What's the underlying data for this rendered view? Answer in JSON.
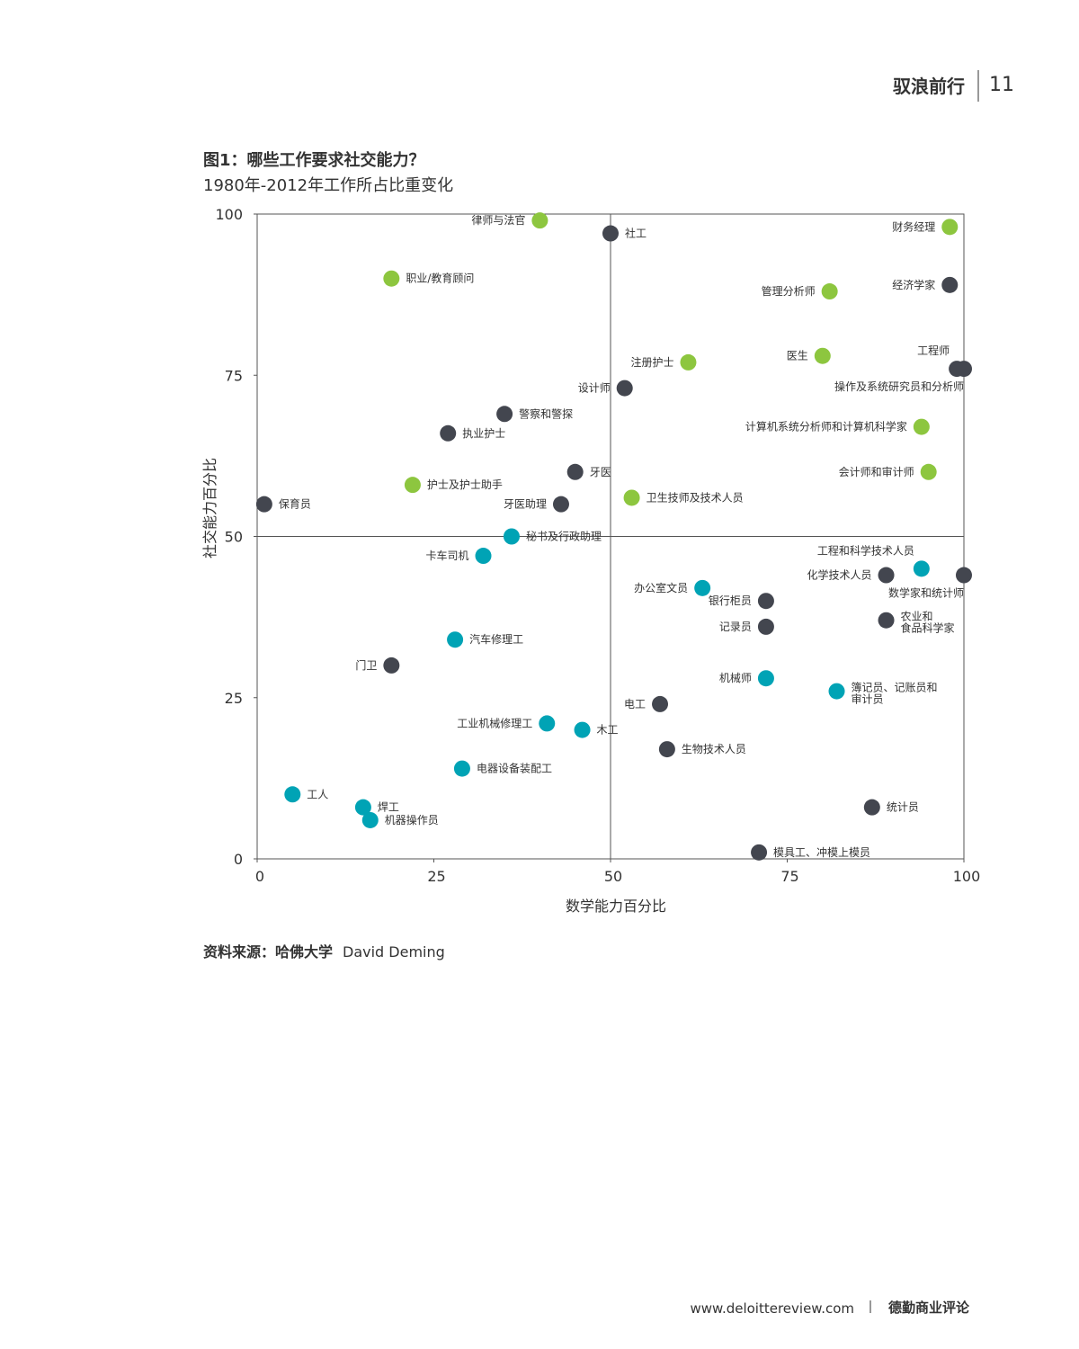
{
  "header": {
    "title": "驭浪前行",
    "page": "11"
  },
  "chart_data": {
    "type": "scatter",
    "title": "图1：哪些工作要求社交能力？",
    "subtitle": "1980年-2012年工作所占比重变化",
    "x_label": "数学能力百分比",
    "y_label": "社交能力百分比",
    "xlim": [
      0,
      100
    ],
    "ylim": [
      0,
      100
    ],
    "xticks": [
      0,
      25,
      50,
      75,
      100
    ],
    "yticks": [
      0,
      25,
      50,
      75,
      100
    ],
    "dividers": {
      "x": 50,
      "y": 50
    },
    "points": [
      {
        "label": "律师与法官",
        "x": 40,
        "y": 99,
        "color": "#8dc63f"
      },
      {
        "label": "社工",
        "x": 50,
        "y": 97,
        "color": "#43464f"
      },
      {
        "label": "财务经理",
        "x": 98,
        "y": 98,
        "color": "#8dc63f"
      },
      {
        "label": "职业/教育顾问",
        "x": 19,
        "y": 90,
        "color": "#8dc63f"
      },
      {
        "label": "管理分析师",
        "x": 81,
        "y": 88,
        "color": "#8dc63f"
      },
      {
        "label": "经济学家",
        "x": 98,
        "y": 89,
        "color": "#43464f"
      },
      {
        "label": "注册护士",
        "x": 61,
        "y": 77,
        "color": "#8dc63f"
      },
      {
        "label": "医生",
        "x": 80,
        "y": 78,
        "color": "#8dc63f"
      },
      {
        "label": "工程师",
        "x": 99,
        "y": 76,
        "color": "#43464f"
      },
      {
        "label": "操作及系统研究员和分析师",
        "x": 100,
        "y": 76,
        "color": "#43464f"
      },
      {
        "label": "设计师",
        "x": 52,
        "y": 73,
        "color": "#43464f"
      },
      {
        "label": "警察和警探",
        "x": 35,
        "y": 69,
        "color": "#43464f"
      },
      {
        "label": "执业护士",
        "x": 27,
        "y": 66,
        "color": "#43464f"
      },
      {
        "label": "计算机系统分析师和计算机科学家",
        "x": 94,
        "y": 67,
        "color": "#8dc63f"
      },
      {
        "label": "牙医",
        "x": 45,
        "y": 60,
        "color": "#43464f"
      },
      {
        "label": "会计师和审计师",
        "x": 95,
        "y": 60,
        "color": "#8dc63f"
      },
      {
        "label": "护士及护士助手",
        "x": 22,
        "y": 58,
        "color": "#8dc63f"
      },
      {
        "label": "保育员",
        "x": 1,
        "y": 55,
        "color": "#43464f"
      },
      {
        "label": "牙医助理",
        "x": 43,
        "y": 55,
        "color": "#43464f"
      },
      {
        "label": "卫生技师及技术人员",
        "x": 53,
        "y": 56,
        "color": "#8dc63f"
      },
      {
        "label": "秘书及行政助理",
        "x": 36,
        "y": 50,
        "color": "#00a3b5"
      },
      {
        "label": "卡车司机",
        "x": 32,
        "y": 47,
        "color": "#00a3b5"
      },
      {
        "label": "工程和科学技术人员",
        "x": 94,
        "y": 45,
        "color": "#00a3b5"
      },
      {
        "label": "化学技术人员",
        "x": 89,
        "y": 44,
        "color": "#43464f"
      },
      {
        "label": "数学家和统计师",
        "x": 100,
        "y": 44,
        "color": "#43464f"
      },
      {
        "label": "办公室文员",
        "x": 63,
        "y": 42,
        "color": "#00a3b5"
      },
      {
        "label": "银行柜员",
        "x": 72,
        "y": 40,
        "color": "#43464f"
      },
      {
        "label": "农业和\n食品科学家",
        "x": 89,
        "y": 37,
        "color": "#43464f"
      },
      {
        "label": "记录员",
        "x": 72,
        "y": 36,
        "color": "#43464f"
      },
      {
        "label": "汽车修理工",
        "x": 28,
        "y": 34,
        "color": "#00a3b5"
      },
      {
        "label": "门卫",
        "x": 19,
        "y": 30,
        "color": "#43464f"
      },
      {
        "label": "机械师",
        "x": 72,
        "y": 28,
        "color": "#00a3b5"
      },
      {
        "label": "簿记员、记账员和\n审计员",
        "x": 82,
        "y": 26,
        "color": "#00a3b5"
      },
      {
        "label": "电工",
        "x": 57,
        "y": 24,
        "color": "#43464f"
      },
      {
        "label": "工业机械修理工",
        "x": 41,
        "y": 21,
        "color": "#00a3b5"
      },
      {
        "label": "木工",
        "x": 46,
        "y": 20,
        "color": "#00a3b5"
      },
      {
        "label": "生物技术人员",
        "x": 58,
        "y": 17,
        "color": "#43464f"
      },
      {
        "label": "电器设备装配工",
        "x": 29,
        "y": 14,
        "color": "#00a3b5"
      },
      {
        "label": "工人",
        "x": 5,
        "y": 10,
        "color": "#00a3b5"
      },
      {
        "label": "焊工",
        "x": 15,
        "y": 8,
        "color": "#00a3b5"
      },
      {
        "label": "机器操作员",
        "x": 16,
        "y": 6,
        "color": "#00a3b5"
      },
      {
        "label": "统计员",
        "x": 87,
        "y": 8,
        "color": "#43464f"
      },
      {
        "label": "模具工、冲模上模员",
        "x": 71,
        "y": 1,
        "color": "#43464f"
      }
    ]
  },
  "source": {
    "prefix": "资料来源：哈佛大学",
    "name": "David Deming"
  },
  "footer": {
    "url": "www.deloittereview.com",
    "brand": "德勤商业评论"
  }
}
